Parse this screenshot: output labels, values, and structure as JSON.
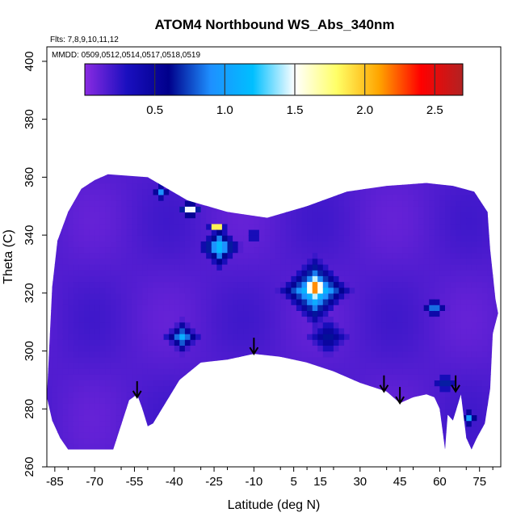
{
  "chart_data": {
    "type": "heatmap",
    "title": "ATOM4 Northbound WS_Abs_340nm",
    "notes": {
      "flights": "Flts: 7,8,9,10,11,12",
      "dates": "MMDD: 0509,0512,0514,0517,0518,0519"
    },
    "xlabel": "Latitude (deg N)",
    "ylabel": "Theta (C)",
    "xlim": [
      -88,
      83
    ],
    "ylim": [
      260,
      405
    ],
    "x_ticks": [
      "-85",
      "-70",
      "-55",
      "-40",
      "-25",
      "-10",
      "5",
      "15",
      "30",
      "45",
      "60",
      "75"
    ],
    "x_tick_values": [
      -85,
      -70,
      -55,
      -40,
      -25,
      -10,
      5,
      15,
      30,
      45,
      60,
      75
    ],
    "y_ticks": [
      "260",
      "280",
      "300",
      "320",
      "340",
      "360",
      "380",
      "400"
    ],
    "y_tick_values": [
      260,
      280,
      300,
      320,
      340,
      360,
      380,
      400
    ],
    "colorbar": {
      "min": 0,
      "max": 2.7,
      "ticks": [
        "0.5",
        "1.0",
        "1.5",
        "2.0",
        "2.5"
      ],
      "tick_values": [
        0.5,
        1.0,
        1.5,
        2.0,
        2.5
      ],
      "colors": [
        "#8a2be2",
        "#1a0fbf",
        "#00008b",
        "#1e90ff",
        "#00bfff",
        "#ffffff",
        "#ffff66",
        "#ffa500",
        "#ff0000",
        "#b22222"
      ]
    },
    "background_value": 0.15,
    "field_boundary": [
      [
        -88,
        284
      ],
      [
        -86,
        322
      ],
      [
        -84,
        338
      ],
      [
        -80,
        348
      ],
      [
        -75,
        356
      ],
      [
        -70,
        359
      ],
      [
        -65,
        361
      ],
      [
        -50,
        360
      ],
      [
        -35,
        352
      ],
      [
        -20,
        348
      ],
      [
        -5,
        346
      ],
      [
        10,
        350
      ],
      [
        25,
        355
      ],
      [
        40,
        357
      ],
      [
        55,
        358
      ],
      [
        65,
        357
      ],
      [
        73,
        355
      ],
      [
        78,
        348
      ],
      [
        79,
        335
      ],
      [
        81,
        318
      ],
      [
        82,
        313
      ],
      [
        80,
        306
      ],
      [
        79,
        287
      ],
      [
        78,
        281
      ],
      [
        77,
        275
      ],
      [
        74,
        270
      ],
      [
        72,
        266
      ],
      [
        70,
        270
      ],
      [
        68,
        285
      ],
      [
        65,
        276
      ],
      [
        63,
        278
      ],
      [
        62,
        266
      ],
      [
        60,
        280
      ],
      [
        58,
        284
      ],
      [
        55,
        285
      ],
      [
        50,
        284
      ],
      [
        45,
        282
      ],
      [
        40,
        286
      ],
      [
        30,
        289
      ],
      [
        20,
        293
      ],
      [
        10,
        296
      ],
      [
        0,
        298
      ],
      [
        -10,
        299
      ],
      [
        -20,
        297
      ],
      [
        -30,
        296
      ],
      [
        -38,
        290
      ],
      [
        -48,
        275
      ],
      [
        -50,
        274
      ],
      [
        -52,
        280
      ],
      [
        -54,
        285
      ],
      [
        -57,
        283
      ],
      [
        -63,
        266
      ],
      [
        -80,
        266
      ],
      [
        -83,
        270
      ],
      [
        -86,
        276
      ],
      [
        -88,
        284
      ]
    ],
    "features": [
      {
        "lat": 13,
        "theta": 322,
        "value": 2.5,
        "spread": 7
      },
      {
        "lat": 13,
        "theta": 321,
        "value": 1.5,
        "spread": 14
      },
      {
        "lat": -23,
        "theta": 336,
        "value": 1.3,
        "spread": 9
      },
      {
        "lat": -24,
        "theta": 343,
        "value": 2.6,
        "spread": 3
      },
      {
        "lat": -34,
        "theta": 349,
        "value": 1.9,
        "spread": 4
      },
      {
        "lat": -45,
        "theta": 355,
        "value": 0.9,
        "spread": 4
      },
      {
        "lat": -10,
        "theta": 340,
        "value": 0.9,
        "spread": 3
      },
      {
        "lat": -37,
        "theta": 305,
        "value": 1.1,
        "spread": 7
      },
      {
        "lat": 58,
        "theta": 315,
        "value": 1.0,
        "spread": 5
      },
      {
        "lat": 62,
        "theta": 289,
        "value": 0.8,
        "spread": 5
      },
      {
        "lat": 71,
        "theta": 277,
        "value": 1.0,
        "spread": 4
      },
      {
        "lat": 18,
        "theta": 305,
        "value": 0.7,
        "spread": 9
      }
    ],
    "arrows": [
      {
        "lat": -54,
        "theta": 284
      },
      {
        "lat": -10,
        "theta": 299
      },
      {
        "lat": 39,
        "theta": 286
      },
      {
        "lat": 45,
        "theta": 282
      },
      {
        "lat": 66,
        "theta": 286
      }
    ]
  }
}
